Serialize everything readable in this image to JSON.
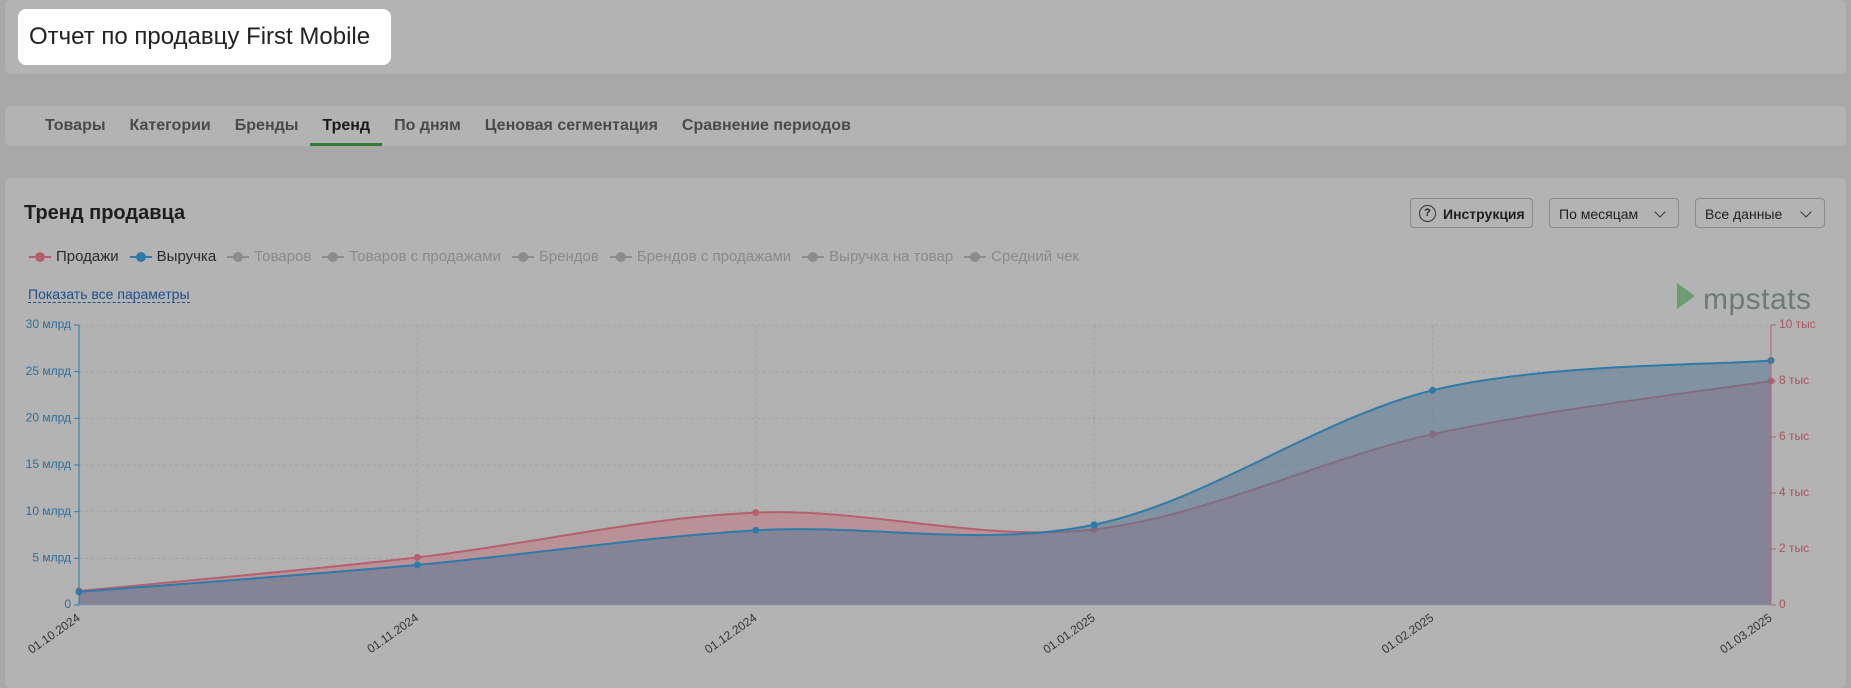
{
  "header": {
    "title": "Отчет по продавцу First Mobile"
  },
  "tabs": [
    "Товары",
    "Категории",
    "Бренды",
    "Тренд",
    "По дням",
    "Ценовая сегментация",
    "Сравнение периодов"
  ],
  "panel": {
    "title": "Тренд продавца",
    "help_button": "Инструкция",
    "period_select": "По месяцам",
    "range_select": "Все данные",
    "show_all_link": "Показать все параметры",
    "logo": "mpstats"
  },
  "chart_data": {
    "type": "area",
    "x": [
      "01.10.2024",
      "01.11.2024",
      "01.12.2024",
      "01.01.2025",
      "01.02.2025",
      "01.03.2025"
    ],
    "series": [
      {
        "name": "Продажи",
        "color": "#b5606e",
        "axis": "y2",
        "values": [
          0.5,
          1.7,
          3.3,
          2.7,
          6.1,
          8.0
        ]
      },
      {
        "name": "Выручка",
        "color": "#2e7aa8",
        "values": [
          1.4,
          4.3,
          8.0,
          8.6,
          23.0,
          26.2
        ]
      }
    ],
    "hidden_series": [
      {
        "name": "Товаров"
      },
      {
        "name": "Товаров с продажами"
      },
      {
        "name": "Брендов"
      },
      {
        "name": "Брендов с продажами"
      },
      {
        "name": "Выручка на товар"
      },
      {
        "name": "Средний чек"
      }
    ],
    "ylim": [
      0,
      30
    ],
    "yticks": [
      0,
      {
        "value": 5,
        "label": "5 млрд"
      },
      {
        "value": 10,
        "label": "10 млрд"
      },
      {
        "value": 15,
        "label": "15 млрд"
      },
      {
        "value": 20,
        "label": "20 млрд"
      },
      {
        "value": 25,
        "label": "25 млрд"
      },
      {
        "value": 30,
        "label": "30 млрд"
      }
    ],
    "y2lim": [
      0,
      10
    ],
    "y2ticks": [
      0,
      {
        "value": 2,
        "label": "2 тыс"
      },
      {
        "value": 4,
        "label": "4 тыс"
      },
      {
        "value": 6,
        "label": "6 тыс"
      },
      {
        "value": 8,
        "label": "8 тыс"
      },
      {
        "value": 10,
        "label": "10 тыс"
      }
    ],
    "grid": true
  }
}
